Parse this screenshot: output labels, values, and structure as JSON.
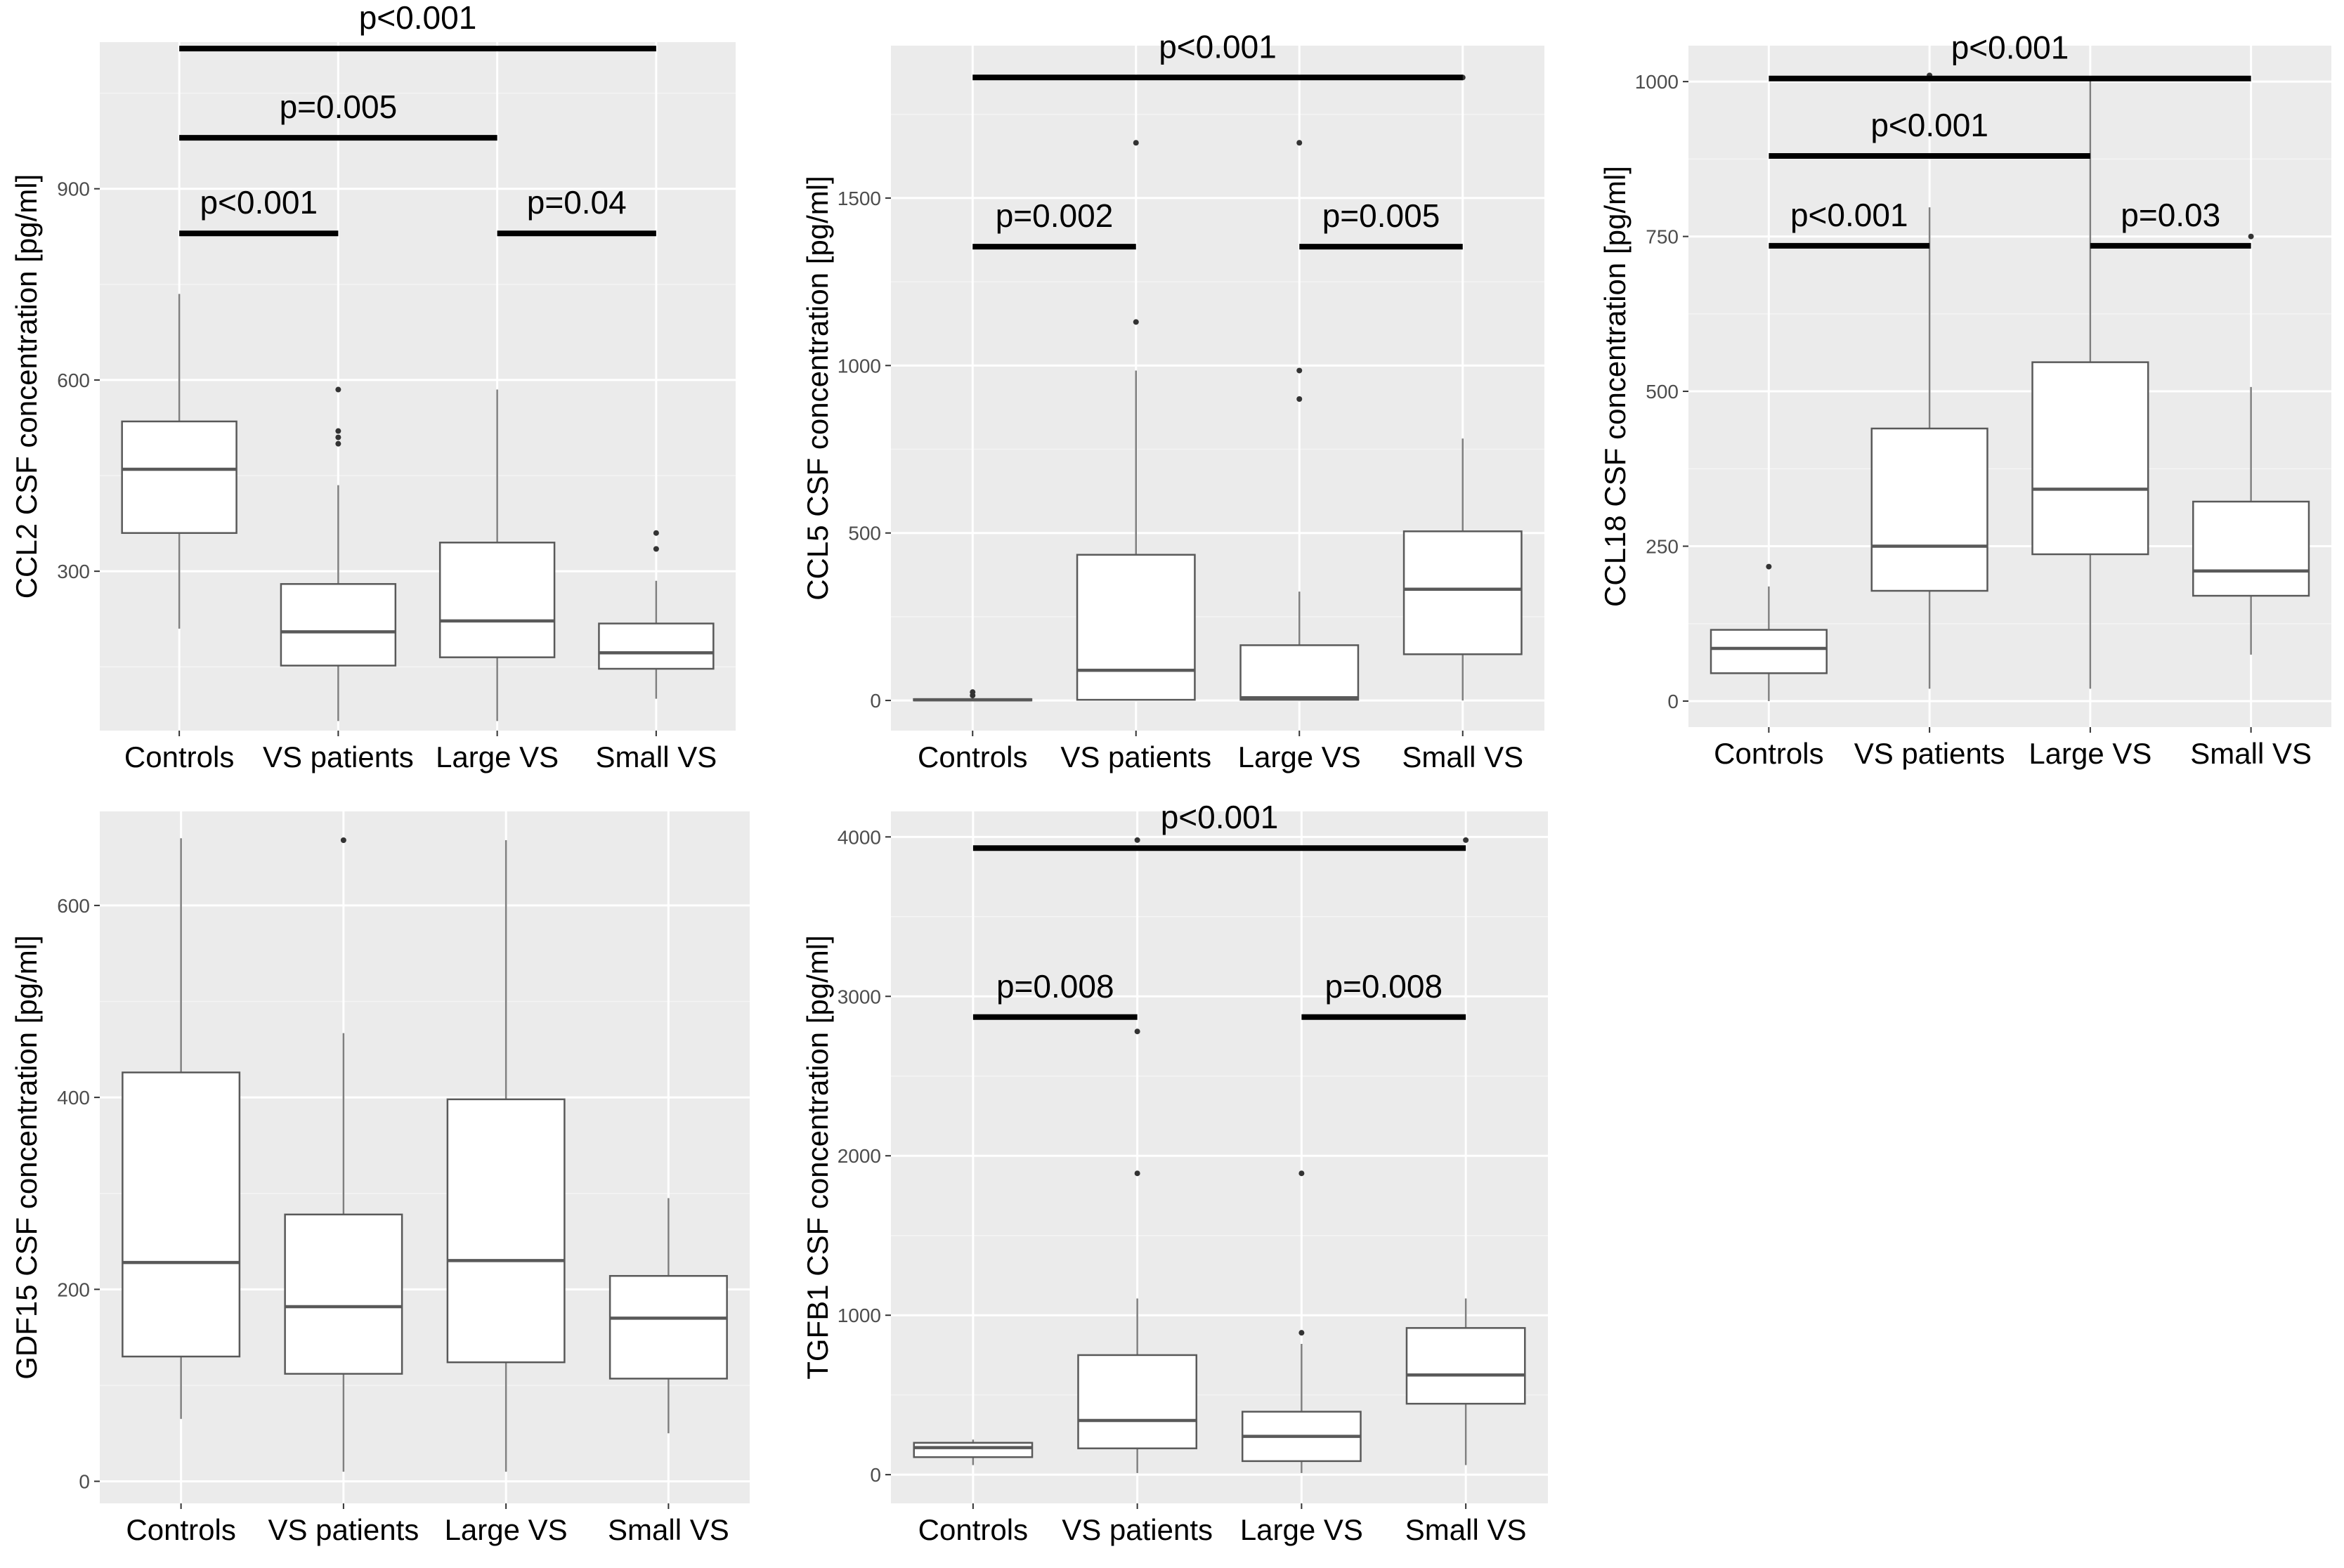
{
  "colors": {
    "panel_bg": "#ebebeb",
    "grid_major": "#ffffff",
    "grid_minor": "#f4f4f4",
    "box_fill": "#ffffff",
    "box_stroke": "#595959",
    "median": "#595959",
    "whisker": "#7f7f7f",
    "outlier": "#333333",
    "tick_text": "#4d4d4d",
    "axis_text": "#000000",
    "sig_bar": "#000000"
  },
  "chart_data": [
    {
      "id": "ccl2",
      "type": "box",
      "ylabel": "CCL2 CSF concentration [pg/ml]",
      "xlabel": "",
      "categories": [
        "Controls",
        "VS patients",
        "Large VS",
        "Small VS"
      ],
      "ylim": [
        50,
        1130
      ],
      "yticks": [
        300,
        600,
        900
      ],
      "yticklabels": [
        "300",
        "600",
        "900"
      ],
      "boxes": [
        {
          "category": "Controls",
          "whisker_low": 210,
          "q1": 360,
          "median": 460,
          "q3": 535,
          "whisker_high": 735,
          "outliers": []
        },
        {
          "category": "VS patients",
          "whisker_low": 65,
          "q1": 152,
          "median": 205,
          "q3": 280,
          "whisker_high": 435,
          "outliers": [
            500,
            510,
            520,
            585
          ]
        },
        {
          "category": "Large VS",
          "whisker_low": 65,
          "q1": 165,
          "median": 222,
          "q3": 345,
          "whisker_high": 585,
          "outliers": []
        },
        {
          "category": "Small VS",
          "whisker_low": 100,
          "q1": 147,
          "median": 172,
          "q3": 218,
          "whisker_high": 285,
          "outliers": [
            335,
            360
          ]
        }
      ],
      "significance": [
        {
          "from": 0,
          "to": 1,
          "y": 830,
          "label": "p<0.001"
        },
        {
          "from": 2,
          "to": 3,
          "y": 830,
          "label": "p=0.04"
        },
        {
          "from": 0,
          "to": 2,
          "y": 980,
          "label": "p=0.005"
        },
        {
          "from": 0,
          "to": 3,
          "y": 1120,
          "label": "p<0.001"
        }
      ]
    },
    {
      "id": "ccl5",
      "type": "box",
      "ylabel": "CCL5 CSF concentration [pg/ml]",
      "xlabel": "",
      "categories": [
        "Controls",
        "VS patients",
        "Large VS",
        "Small VS"
      ],
      "ylim": [
        -90,
        1955
      ],
      "yticks": [
        0,
        500,
        1000,
        1500
      ],
      "yticklabels": [
        "0",
        "500",
        "1000",
        "1500"
      ],
      "boxes": [
        {
          "category": "Controls",
          "whisker_low": 0,
          "q1": 0,
          "median": 2,
          "q3": 4,
          "whisker_high": 8,
          "outliers": [
            15,
            25
          ]
        },
        {
          "category": "VS patients",
          "whisker_low": 0,
          "q1": 2,
          "median": 90,
          "q3": 435,
          "whisker_high": 985,
          "outliers": [
            1130,
            1665
          ]
        },
        {
          "category": "Large VS",
          "whisker_low": 0,
          "q1": 2,
          "median": 8,
          "q3": 165,
          "whisker_high": 325,
          "outliers": [
            900,
            985,
            1665
          ]
        },
        {
          "category": "Small VS",
          "whisker_low": 0,
          "q1": 138,
          "median": 332,
          "q3": 505,
          "whisker_high": 782,
          "outliers": [
            1860
          ]
        }
      ],
      "significance": [
        {
          "from": 0,
          "to": 1,
          "y": 1355,
          "label": "p=0.002"
        },
        {
          "from": 2,
          "to": 3,
          "y": 1355,
          "label": "p=0.005"
        },
        {
          "from": 0,
          "to": 3,
          "y": 1860,
          "label": "p<0.001"
        }
      ]
    },
    {
      "id": "ccl18",
      "type": "box",
      "ylabel": "CCL18 CSF concentration [pg/ml]",
      "xlabel": "",
      "categories": [
        "Controls",
        "VS patients",
        "Large VS",
        "Small VS"
      ],
      "ylim": [
        -42,
        1058
      ],
      "yticks": [
        0,
        250,
        500,
        750,
        1000
      ],
      "yticklabels": [
        "0",
        "250",
        "500",
        "750",
        "1000"
      ],
      "boxes": [
        {
          "category": "Controls",
          "whisker_low": 0,
          "q1": 45,
          "median": 85,
          "q3": 115,
          "whisker_high": 185,
          "outliers": [
            217
          ]
        },
        {
          "category": "VS patients",
          "whisker_low": 20,
          "q1": 178,
          "median": 250,
          "q3": 440,
          "whisker_high": 797,
          "outliers": [
            1010
          ]
        },
        {
          "category": "Large VS",
          "whisker_low": 20,
          "q1": 237,
          "median": 342,
          "q3": 547,
          "whisker_high": 1005,
          "outliers": []
        },
        {
          "category": "Small VS",
          "whisker_low": 75,
          "q1": 170,
          "median": 210,
          "q3": 322,
          "whisker_high": 507,
          "outliers": [
            750
          ]
        }
      ],
      "significance": [
        {
          "from": 0,
          "to": 1,
          "y": 735,
          "label": "p<0.001"
        },
        {
          "from": 2,
          "to": 3,
          "y": 735,
          "label": "p=0.03"
        },
        {
          "from": 0,
          "to": 2,
          "y": 880,
          "label": "p<0.001"
        },
        {
          "from": 0,
          "to": 3,
          "y": 1005,
          "label": "p<0.001"
        }
      ]
    },
    {
      "id": "gdf15",
      "type": "box",
      "ylabel": "GDF15 CSF concentration [pg/ml]",
      "xlabel": "",
      "categories": [
        "Controls",
        "VS patients",
        "Large VS",
        "Small VS"
      ],
      "ylim": [
        -23,
        698
      ],
      "yticks": [
        0,
        200,
        400,
        600
      ],
      "yticklabels": [
        "0",
        "200",
        "400",
        "600"
      ],
      "boxes": [
        {
          "category": "Controls",
          "whisker_low": 65,
          "q1": 130,
          "median": 228,
          "q3": 426,
          "whisker_high": 670,
          "outliers": []
        },
        {
          "category": "VS patients",
          "whisker_low": 10,
          "q1": 112,
          "median": 182,
          "q3": 278,
          "whisker_high": 467,
          "outliers": [
            668
          ]
        },
        {
          "category": "Large VS",
          "whisker_low": 10,
          "q1": 124,
          "median": 230,
          "q3": 398,
          "whisker_high": 668,
          "outliers": []
        },
        {
          "category": "Small VS",
          "whisker_low": 50,
          "q1": 107,
          "median": 170,
          "q3": 214,
          "whisker_high": 295,
          "outliers": []
        }
      ],
      "significance": []
    },
    {
      "id": "tgfb1",
      "type": "box",
      "ylabel": "TGFB1 CSF concentration [pg/ml]",
      "xlabel": "",
      "categories": [
        "Controls",
        "VS patients",
        "Large VS",
        "Small VS"
      ],
      "ylim": [
        -180,
        4160
      ],
      "yticks": [
        0,
        1000,
        2000,
        3000,
        4000
      ],
      "yticklabels": [
        "0",
        "1000",
        "2000",
        "3000",
        "4000"
      ],
      "boxes": [
        {
          "category": "Controls",
          "whisker_low": 60,
          "q1": 110,
          "median": 170,
          "q3": 200,
          "whisker_high": 220,
          "outliers": []
        },
        {
          "category": "VS patients",
          "whisker_low": 10,
          "q1": 165,
          "median": 340,
          "q3": 750,
          "whisker_high": 1105,
          "outliers": [
            1890,
            2780,
            3980
          ]
        },
        {
          "category": "Large VS",
          "whisker_low": 10,
          "q1": 85,
          "median": 240,
          "q3": 395,
          "whisker_high": 820,
          "outliers": [
            890,
            1890
          ]
        },
        {
          "category": "Small VS",
          "whisker_low": 60,
          "q1": 445,
          "median": 625,
          "q3": 920,
          "whisker_high": 1105,
          "outliers": [
            3980
          ]
        }
      ],
      "significance": [
        {
          "from": 0,
          "to": 1,
          "y": 2870,
          "label": "p=0.008"
        },
        {
          "from": 2,
          "to": 3,
          "y": 2870,
          "label": "p=0.008"
        },
        {
          "from": 0,
          "to": 3,
          "y": 3930,
          "label": "p<0.001"
        }
      ]
    }
  ]
}
